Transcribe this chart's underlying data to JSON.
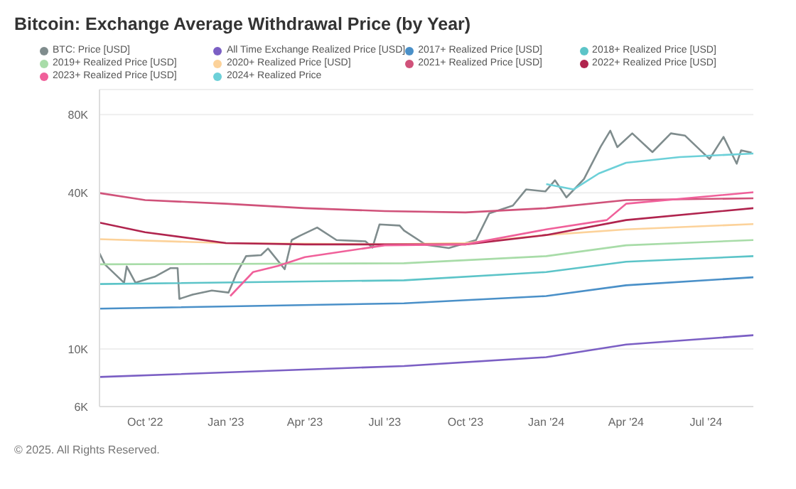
{
  "chart_data": {
    "type": "line",
    "title": "Bitcoin: Exchange Average Withdrawal Price (by Year)",
    "annotations": [
      "© 2025. All Rights Reserved."
    ],
    "log": true,
    "grid": "y",
    "legend": "top",
    "marker": "none",
    "line_style": "solid",
    "xlim": [
      "2022-08-10",
      "2024-08-24"
    ],
    "xticks": [
      {
        "value": "2022-10-01",
        "label": "Oct '22"
      },
      {
        "value": "2023-01-01",
        "label": "Jan '23"
      },
      {
        "value": "2023-04-01",
        "label": "Apr '23"
      },
      {
        "value": "2023-07-01",
        "label": "Jul '23"
      },
      {
        "value": "2023-10-01",
        "label": "Oct '23"
      },
      {
        "value": "2024-01-01",
        "label": "Jan '24"
      },
      {
        "value": "2024-04-01",
        "label": "Apr '24"
      },
      {
        "value": "2024-07-01",
        "label": "Jul '24"
      }
    ],
    "ylim": [
      6000,
      100000
    ],
    "yticks": [
      {
        "value": 6000,
        "label": "6K"
      },
      {
        "value": 10000,
        "label": "10K"
      },
      {
        "value": 40000,
        "label": "40K"
      },
      {
        "value": 80000,
        "label": "80K"
      }
    ],
    "series": [
      {
        "name": "BTC: Price [USD]",
        "color": "#7f8c8d",
        "x": [
          "2022-08-10",
          "2022-08-16",
          "2022-09-07",
          "2022-09-10",
          "2022-09-20",
          "2022-10-12",
          "2022-10-30",
          "2022-11-07",
          "2022-11-09",
          "2022-11-24",
          "2022-12-16",
          "2023-01-04",
          "2023-01-13",
          "2023-01-24",
          "2023-02-10",
          "2023-02-18",
          "2023-03-09",
          "2023-03-17",
          "2023-03-26",
          "2023-04-15",
          "2023-05-07",
          "2023-06-09",
          "2023-06-17",
          "2023-06-25",
          "2023-07-18",
          "2023-07-23",
          "2023-08-17",
          "2023-09-12",
          "2023-10-13",
          "2023-10-28",
          "2023-11-24",
          "2023-12-09",
          "2023-12-31",
          "2024-01-11",
          "2024-01-24",
          "2024-02-13",
          "2024-03-03",
          "2024-03-14",
          "2024-03-22",
          "2024-04-08",
          "2024-05-01",
          "2024-05-22",
          "2024-06-07",
          "2024-07-05",
          "2024-07-21",
          "2024-08-05",
          "2024-08-10",
          "2024-08-22"
        ],
        "values": [
          23400,
          21200,
          18000,
          20800,
          18000,
          19000,
          20500,
          20500,
          15600,
          16200,
          16800,
          16500,
          19500,
          22800,
          23000,
          24400,
          20300,
          26300,
          27300,
          29400,
          26300,
          26000,
          24600,
          30200,
          29900,
          28600,
          25200,
          24500,
          26300,
          33300,
          35700,
          41200,
          40500,
          44700,
          38400,
          45200,
          60200,
          69400,
          60000,
          67800,
          57400,
          67800,
          66500,
          54000,
          65700,
          51800,
          58300,
          57100
        ]
      },
      {
        "name": "All Time Exchange Realized Price [USD]",
        "color": "#7b5fc4",
        "x": [
          "2022-08-10",
          "2023-07-23",
          "2024-01-01",
          "2024-04-01",
          "2024-08-24"
        ],
        "values": [
          7800,
          8600,
          9300,
          10400,
          11300
        ]
      },
      {
        "name": "2017+ Realized Price [USD]",
        "color": "#4a90c8",
        "x": [
          "2022-08-10",
          "2023-07-23",
          "2024-01-01",
          "2024-04-01",
          "2024-08-24"
        ],
        "values": [
          14300,
          15000,
          16000,
          17600,
          18900
        ]
      },
      {
        "name": "2018+ Realized Price [USD]",
        "color": "#5cc4c8",
        "x": [
          "2022-08-10",
          "2023-07-23",
          "2024-01-01",
          "2024-04-01",
          "2024-08-24"
        ],
        "values": [
          17800,
          18400,
          19800,
          21700,
          22800
        ]
      },
      {
        "name": "2019+ Realized Price [USD]",
        "color": "#a8dca8",
        "x": [
          "2022-08-10",
          "2023-07-23",
          "2024-01-01",
          "2024-04-01",
          "2024-08-24"
        ],
        "values": [
          21200,
          21400,
          22800,
          25100,
          26300
        ]
      },
      {
        "name": "2020+ Realized Price [USD]",
        "color": "#fcd29a",
        "x": [
          "2022-08-10",
          "2023-01-01",
          "2023-07-01",
          "2023-10-01",
          "2024-01-01",
          "2024-04-01",
          "2024-08-24"
        ],
        "values": [
          26500,
          25600,
          25300,
          25600,
          27500,
          28900,
          30300
        ]
      },
      {
        "name": "2021+ Realized Price [USD]",
        "color": "#d0527a",
        "x": [
          "2022-08-10",
          "2022-10-01",
          "2023-01-01",
          "2023-04-01",
          "2023-07-01",
          "2023-10-01",
          "2024-01-01",
          "2024-04-01",
          "2024-08-24"
        ],
        "values": [
          39900,
          37500,
          36300,
          34900,
          34000,
          33600,
          34900,
          37500,
          38100
        ]
      },
      {
        "name": "2022+ Realized Price [USD]",
        "color": "#b0244e",
        "x": [
          "2022-08-10",
          "2022-10-01",
          "2023-01-01",
          "2023-04-01",
          "2023-07-01",
          "2023-10-01",
          "2024-01-01",
          "2024-04-01",
          "2024-08-24"
        ],
        "values": [
          30700,
          28200,
          25600,
          25300,
          25300,
          25300,
          27500,
          31400,
          34900
        ]
      },
      {
        "name": "2023+ Realized Price [USD]",
        "color": "#f0609a",
        "x": [
          "2023-01-06",
          "2023-02-01",
          "2023-03-01",
          "2023-04-01",
          "2023-07-01",
          "2023-10-01",
          "2024-01-01",
          "2024-03-10",
          "2024-04-01",
          "2024-08-24"
        ],
        "values": [
          16000,
          19800,
          20900,
          22600,
          25100,
          25300,
          28900,
          31400,
          36300,
          40200
        ]
      },
      {
        "name": "2024+ Realized Price",
        "color": "#6cd0d8",
        "x": [
          "2024-01-01",
          "2024-02-01",
          "2024-03-01",
          "2024-04-01",
          "2024-06-01",
          "2024-08-24"
        ],
        "values": [
          43200,
          41200,
          47500,
          52200,
          54900,
          56700
        ]
      }
    ]
  }
}
